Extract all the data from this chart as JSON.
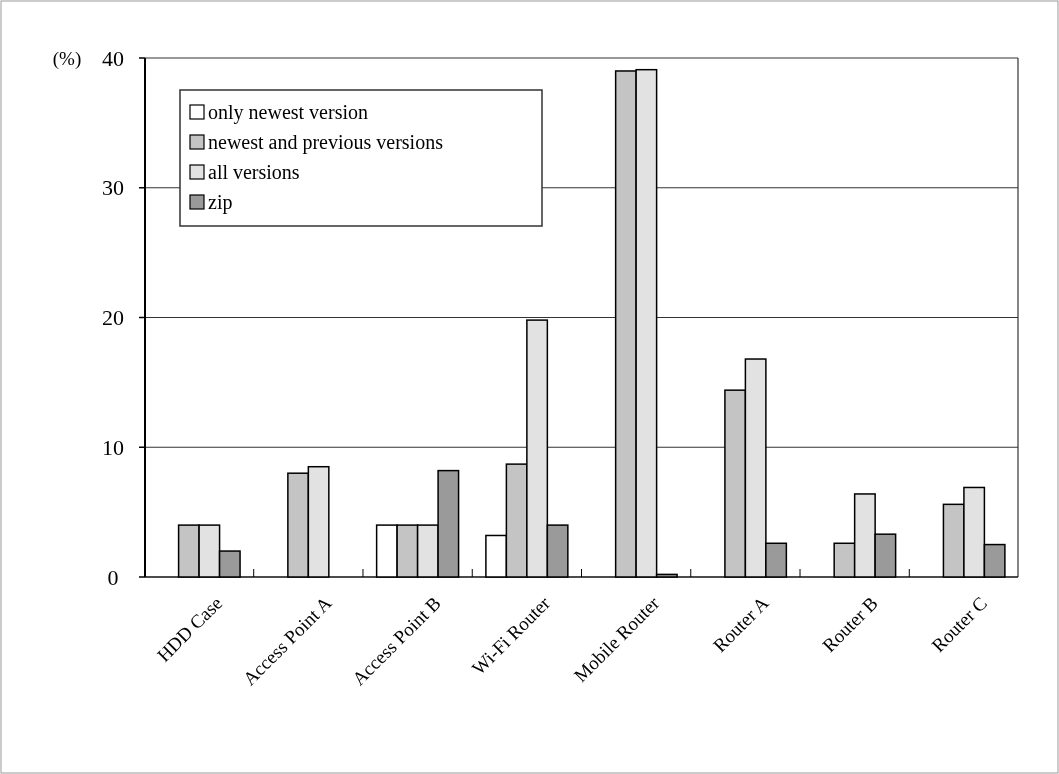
{
  "chart_data": {
    "type": "bar",
    "ylabel": "(%)",
    "categories": [
      "HDD Case",
      "Access Point A",
      "Access Point B",
      "Wi-Fi Router",
      "Mobile Router",
      "Router A",
      "Router B",
      "Router C"
    ],
    "series": [
      {
        "name": "only newest version",
        "color": "#ffffff",
        "values": [
          0,
          0,
          4.0,
          3.2,
          0,
          0,
          0,
          0
        ]
      },
      {
        "name": "newest and previous versions",
        "color": "#c4c4c4",
        "values": [
          4.0,
          8.0,
          4.0,
          8.7,
          39.0,
          14.4,
          2.6,
          5.6
        ]
      },
      {
        "name": "all versions",
        "color": "#e2e2e2",
        "values": [
          4.0,
          8.5,
          4.0,
          19.8,
          39.1,
          16.8,
          6.4,
          6.9
        ]
      },
      {
        "name": "zip",
        "color": "#9a9a9a",
        "values": [
          2.0,
          0,
          8.2,
          4.0,
          0.2,
          2.6,
          3.3,
          2.5
        ]
      }
    ],
    "ylim": [
      0,
      40
    ],
    "yticks": [
      0,
      10,
      20,
      30,
      40
    ],
    "grid": "y",
    "legend": "top left"
  }
}
